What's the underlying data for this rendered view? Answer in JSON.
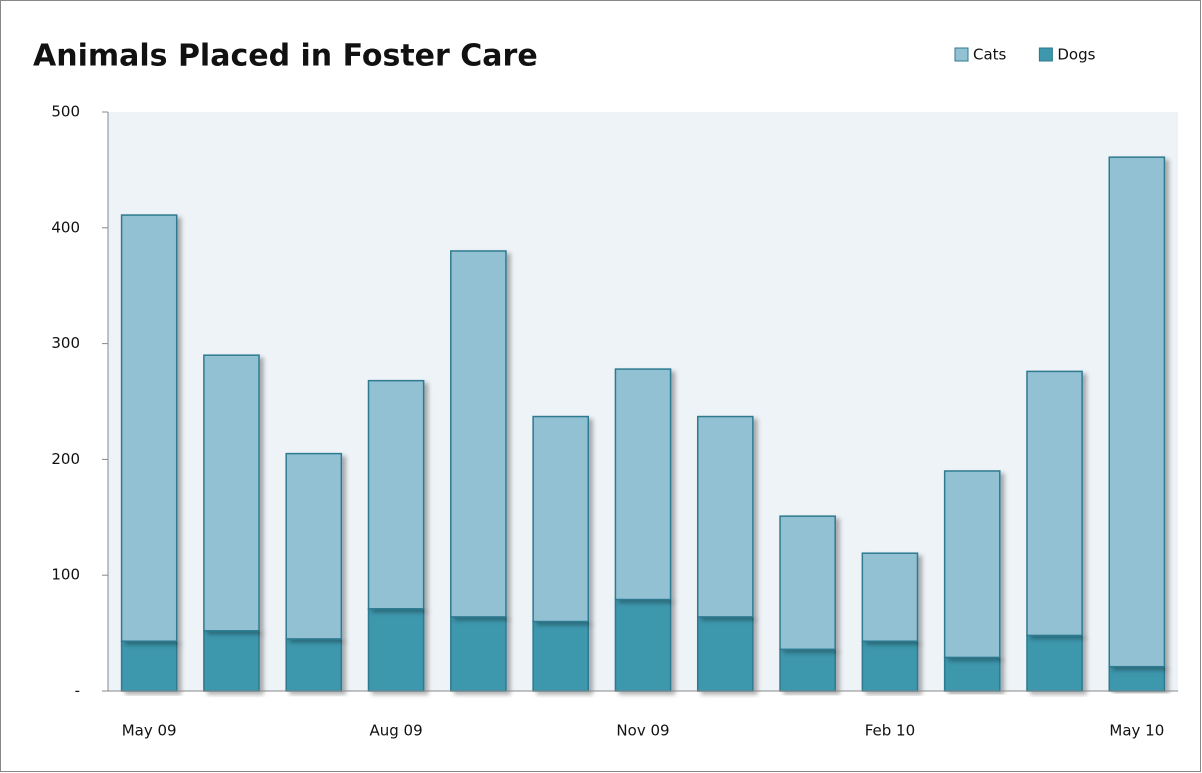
{
  "chart_data": {
    "type": "stacked_bar",
    "title": "Animals Placed in Foster Care",
    "categories": [
      "May 09",
      null,
      null,
      "Aug 09",
      null,
      null,
      "Nov 09",
      null,
      null,
      "Feb 10",
      null,
      null,
      "May 10"
    ],
    "series": [
      {
        "name": "Cats",
        "color": "#92c1d3",
        "values": [
          368,
          238,
          160,
          197,
          316,
          177,
          199,
          173,
          115,
          76,
          161,
          228,
          440
        ]
      },
      {
        "name": "Dogs",
        "color": "#3d97ad",
        "values": [
          43,
          52,
          45,
          71,
          64,
          60,
          79,
          64,
          36,
          43,
          29,
          48,
          21
        ]
      }
    ],
    "ylim": [
      0,
      500
    ],
    "yticks": [
      {
        "value": 0,
        "label": "-"
      },
      100,
      200,
      300,
      400,
      500
    ],
    "legend": "top-right"
  }
}
